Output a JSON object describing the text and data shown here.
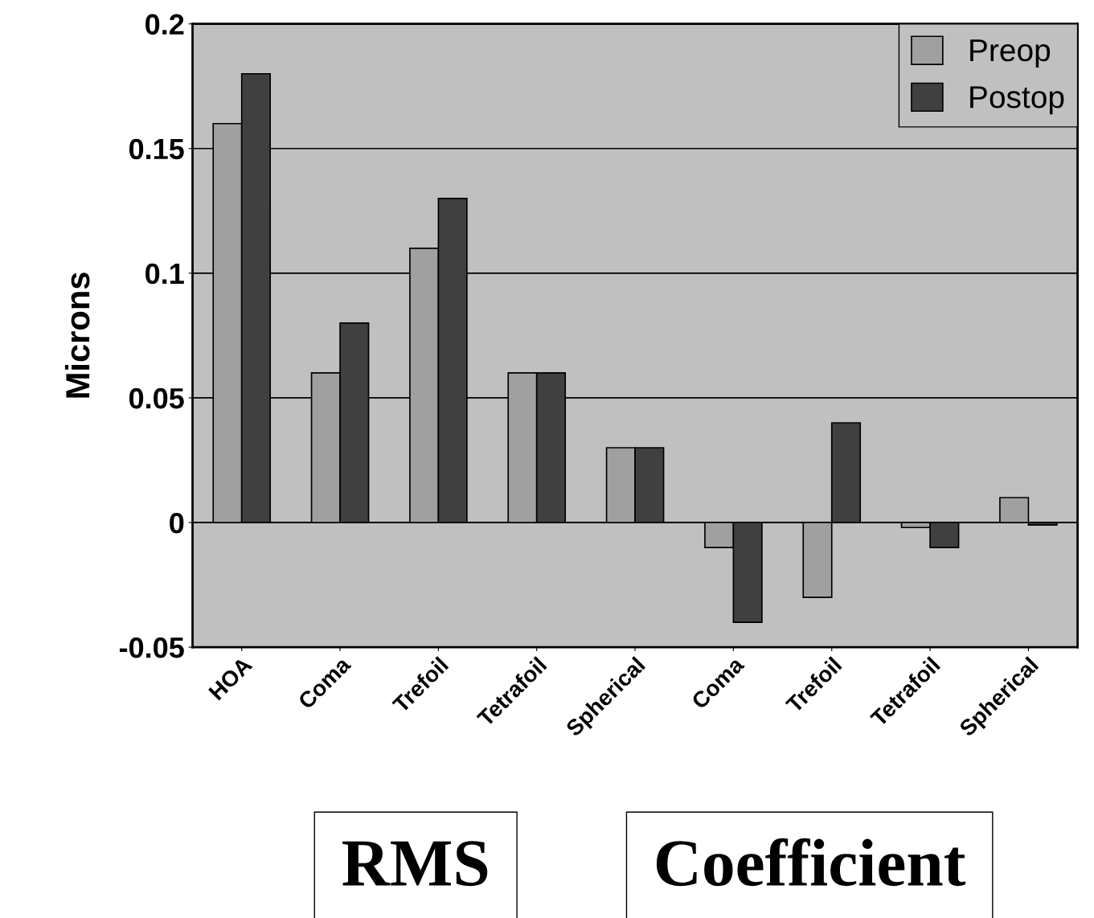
{
  "chart_data": {
    "type": "bar",
    "ylabel": "Microns",
    "categories": [
      "HOA",
      "Coma",
      "Trefoil",
      "Tetrafoil",
      "Spherical",
      "Coma",
      "Trefoil",
      "Tetrafoil",
      "Spherical"
    ],
    "series": [
      {
        "name": "Preop",
        "color": "#a0a0a0",
        "values": [
          0.16,
          0.06,
          0.11,
          0.06,
          0.03,
          -0.01,
          -0.03,
          -0.002,
          0.01
        ]
      },
      {
        "name": "Postop",
        "color": "#404040",
        "values": [
          0.18,
          0.08,
          0.13,
          0.06,
          0.03,
          -0.04,
          0.04,
          -0.01,
          -0.001
        ]
      }
    ],
    "ylim": [
      -0.05,
      0.2
    ],
    "yticks": [
      -0.05,
      0,
      0.05,
      0.1,
      0.15,
      0.2
    ],
    "grid": "y",
    "legend": "top right",
    "annotations": [
      "RMS",
      "Coefficient"
    ]
  }
}
